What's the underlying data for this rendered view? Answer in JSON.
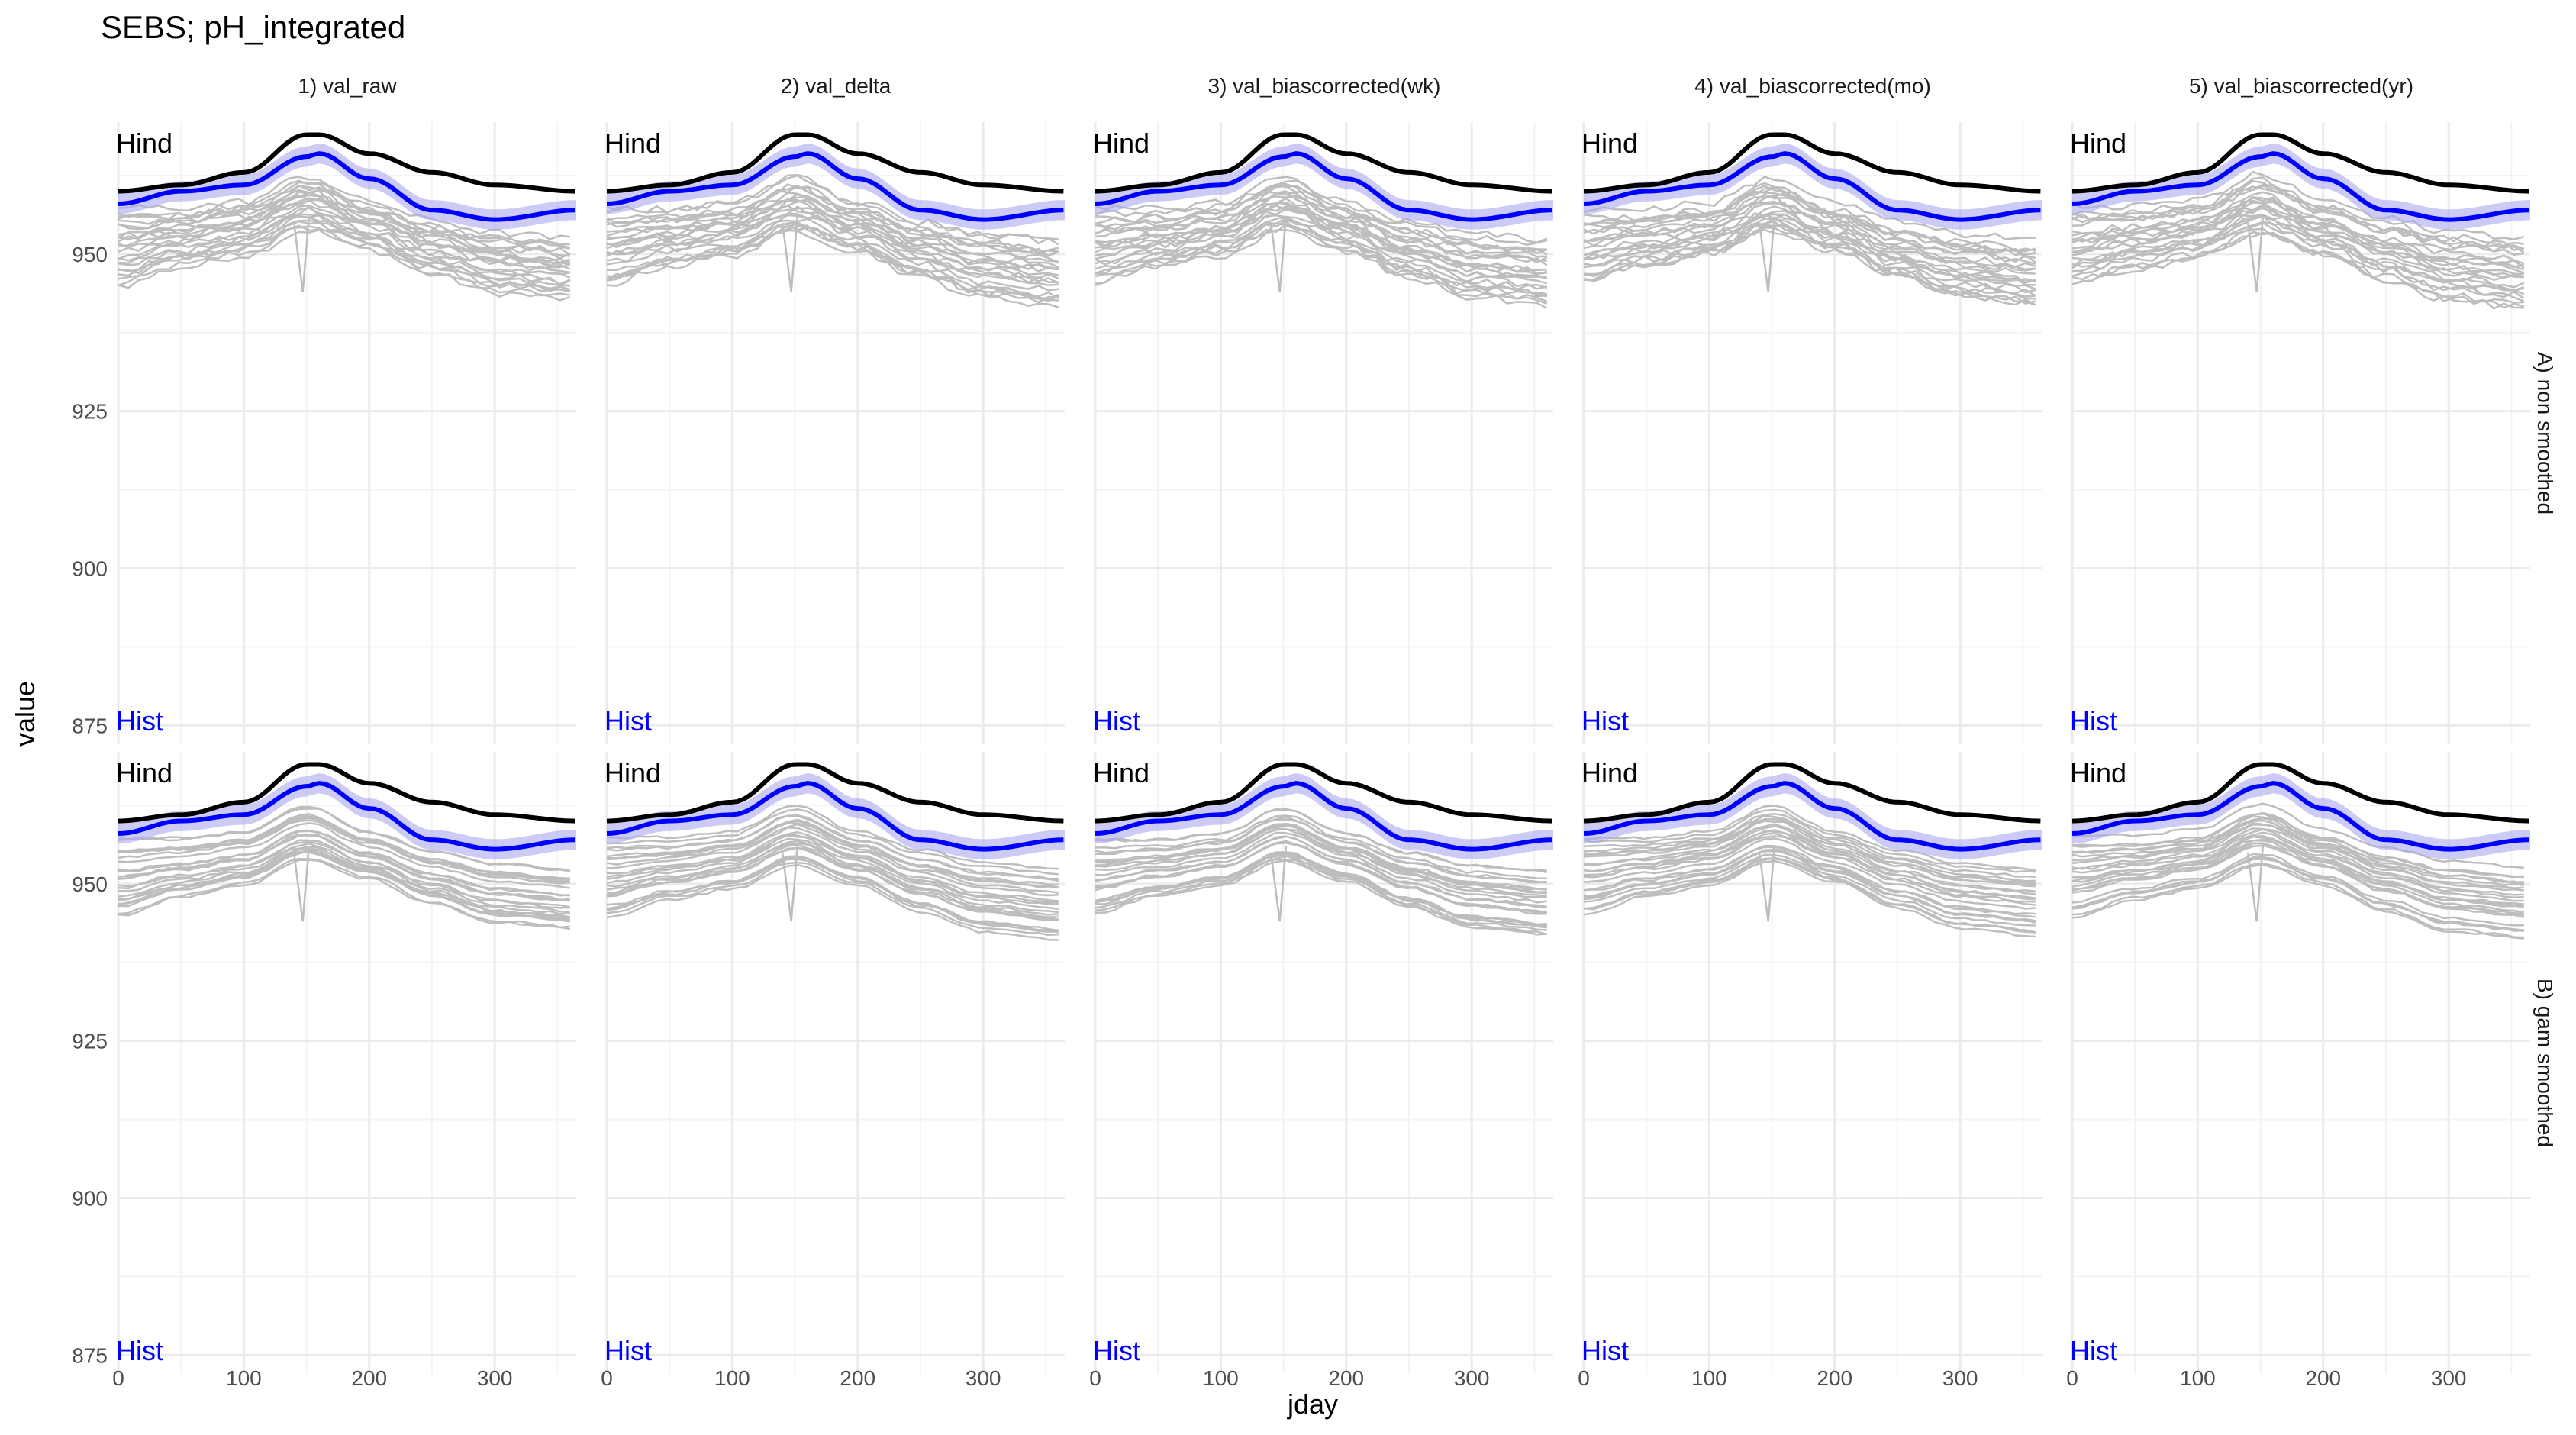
{
  "chart_data": {
    "type": "line",
    "title": "SEBS; pH_integrated",
    "xlabel": "jday",
    "ylabel": "value",
    "xlim": [
      0,
      365
    ],
    "ylim": [
      872,
      971
    ],
    "x_ticks": [
      0,
      100,
      200,
      300
    ],
    "y_ticks": [
      875,
      900,
      925,
      950
    ],
    "grid": true,
    "columns": [
      "1) val_raw",
      "2) val_delta",
      "3) val_biascorrected(wk)",
      "4) val_biascorrected(mo)",
      "5) val_biascorrected(yr)"
    ],
    "rows": [
      "A) non smoothed",
      "B) gam smoothed"
    ],
    "panel_labels": {
      "hind": "Hind",
      "hist": "Hist"
    },
    "colors": {
      "hind": "#000000",
      "hist": "#0000ff",
      "hist_band": "#a8a8f0",
      "projections": "#bdbdbd",
      "grid": "#ebebeb"
    },
    "series": [
      {
        "name": "Hind",
        "x": [
          0,
          50,
          100,
          150,
          160,
          200,
          250,
          300,
          365
        ],
        "values": [
          960,
          961,
          963,
          969,
          969,
          966,
          963,
          961,
          960
        ]
      },
      {
        "name": "Hist",
        "x": [
          0,
          50,
          100,
          150,
          160,
          200,
          250,
          300,
          365
        ],
        "values": [
          958,
          960,
          961,
          965.5,
          966,
          962,
          957,
          955.5,
          957
        ]
      }
    ],
    "projection_envelope": {
      "description_free": true,
      "x": [
        0,
        50,
        100,
        150,
        200,
        250,
        300,
        365
      ],
      "upper": [
        957,
        957,
        958,
        962,
        958,
        955,
        953,
        952
      ],
      "lower": [
        945,
        948,
        950,
        954,
        951,
        947,
        944,
        943
      ]
    }
  }
}
